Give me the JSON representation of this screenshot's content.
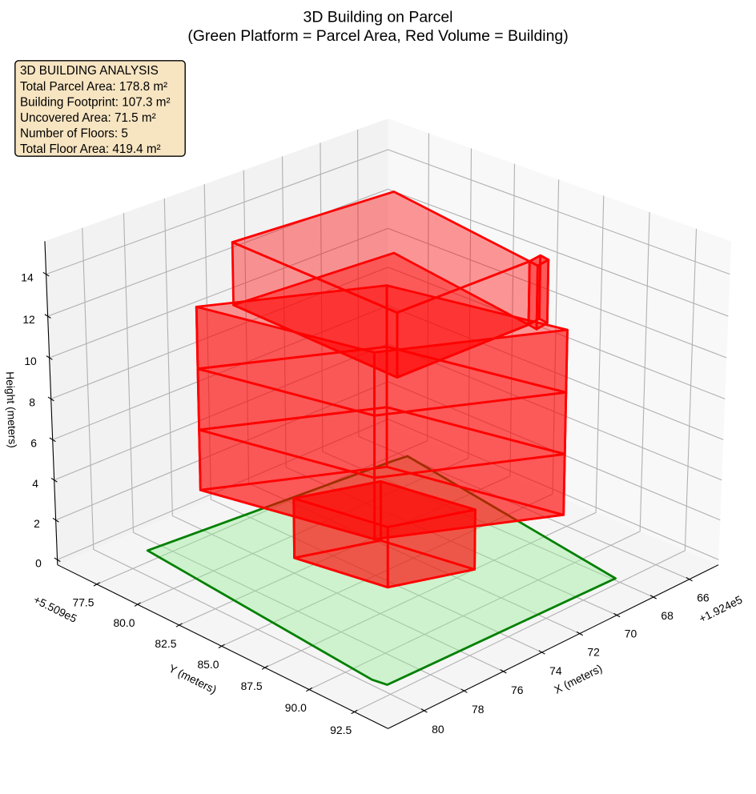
{
  "title": {
    "line1": "3D Building on Parcel",
    "line2": "(Green Platform = Parcel Area, Red Volume = Building)"
  },
  "info_box": {
    "lines": [
      "3D BUILDING ANALYSIS",
      "Total Parcel Area: 178.8 m²",
      "Building Footprint: 107.3 m²",
      "Uncovered Area: 71.5 m²",
      "Number of Floors: 5",
      "Total Floor Area: 419.4 m²"
    ],
    "fill_color": "#f5deb3",
    "fill_alpha": 0.8,
    "border_color": "#000000"
  },
  "chart_data": {
    "type": "3d-building-plot",
    "camera": {
      "elev": 25,
      "azim": 45,
      "roll": 0,
      "dist": 10,
      "focal_length": 1,
      "proj_type": "persp",
      "box_aspect": [
        1.1904761904761905,
        1.1904761904761905,
        0.8928571428571429
      ]
    },
    "axes": {
      "x": {
        "label": "X (meters)",
        "offset_text": "+1.924e5",
        "lim": [
          192464.35,
          192481.78
        ],
        "ticks": [
          192466,
          192468,
          192470,
          192472,
          192474,
          192476,
          192478,
          192480
        ],
        "tick_labels": [
          "66",
          "68",
          "70",
          "72",
          "74",
          "76",
          "78",
          "80"
        ]
      },
      "y": {
        "label": "Y (meters)",
        "offset_text": "+5.509e5",
        "lim": [
          550975.05,
          550994.33
        ],
        "ticks": [
          550977.5,
          550980.0,
          550982.5,
          550985.0,
          550987.5,
          550990.0,
          550992.5
        ],
        "tick_labels": [
          "77.5",
          "80.0",
          "82.5",
          "85.0",
          "87.5",
          "90.0",
          "92.5"
        ]
      },
      "z": {
        "label": "Height (meters)",
        "offset_text": "",
        "lim": [
          -0.26,
          15.56
        ],
        "ticks": [
          0,
          2,
          4,
          6,
          8,
          10,
          12,
          14
        ],
        "tick_labels": [
          "0",
          "2",
          "4",
          "6",
          "8",
          "10",
          "12",
          "14"
        ]
      }
    },
    "panes": {
      "x_color": "#f8f8f8",
      "y_color": "#f2f2f2",
      "z_color": "#f5f5f5",
      "grid_color": "#b1b1b1",
      "grid_width": 0.8,
      "spine_color": "#000000",
      "spine_width": 0.8,
      "tick_color": "#000000",
      "tick_label_size": 10,
      "axis_label_size": 10
    },
    "parcel": {
      "name": "parcel-platform",
      "polygon": [
        [
          192478.9,
          550977.06
        ],
        [
          192479.99,
          550991.47
        ],
        [
          192479.87,
          550992.18
        ],
        [
          192468.19,
          550992.44
        ],
        [
          192466.23,
          550978.33
        ],
        [
          192466.95,
          550978.22
        ]
      ],
      "z": 0,
      "face_color": "#90ee90",
      "edge_color": "#008000",
      "alpha": 0.4,
      "line_width": 2
    },
    "building": {
      "name": "building-volume",
      "face_color": "#ff0000",
      "edge_color": "#ff0000",
      "alpha": 0.4,
      "line_width": 2,
      "parts": [
        {
          "name": "floor-1-annex",
          "footprint": [
            [
              192475.43,
              550981.84
            ],
            [
              192474.64,
              550986.42
            ],
            [
              192471.35,
              550987.82
            ],
            [
              192472.14,
              550983.24
            ]
          ],
          "z": [
            0,
            3
          ],
          "walls": "all",
          "top": true,
          "bottom": true
        },
        {
          "name": "floor-2",
          "footprint": [
            [
              192477.4,
              550978.57
            ],
            [
              192471.1,
              550982.45
            ],
            [
              192469.37,
              550990.69
            ],
            [
              192475.67,
              550986.81
            ]
          ],
          "z": [
            3,
            6
          ],
          "walls": "all",
          "top": false,
          "bottom": true
        },
        {
          "name": "floor-3",
          "footprint": [
            [
              192477.4,
              550978.57
            ],
            [
              192471.1,
              550982.45
            ],
            [
              192469.37,
              550990.69
            ],
            [
              192475.67,
              550986.81
            ]
          ],
          "z": [
            6,
            9
          ],
          "walls": "all",
          "top": false,
          "bottom": false
        },
        {
          "name": "floor-4",
          "footprint": [
            [
              192477.4,
              550978.57
            ],
            [
              192471.1,
              550982.45
            ],
            [
              192469.37,
              550990.69
            ],
            [
              192475.67,
              550986.81
            ]
          ],
          "z": [
            9,
            12
          ],
          "walls": "all",
          "top": false,
          "bottom": false
        },
        {
          "name": "floor-5",
          "footprint": [
            [
              192476.33,
              550979.49
            ],
            [
              192468.73,
              550980.24
            ],
            [
              192470.02,
              550989.25
            ],
            [
              192476.61,
              550989.11
            ]
          ],
          "z": [
            12,
            15
          ],
          "walls": "front",
          "top": true,
          "bottom": true
        },
        {
          "name": "roof-annex",
          "footprint": [
            [
              192470.02,
              550989.25
            ],
            [
              192469.35,
              550989.14
            ],
            [
              192469.44,
              550989.67
            ],
            [
              192470.11,
              550989.78
            ]
          ],
          "z": [
            12,
            15
          ],
          "walls": "all",
          "top": true,
          "bottom": false
        }
      ]
    }
  }
}
